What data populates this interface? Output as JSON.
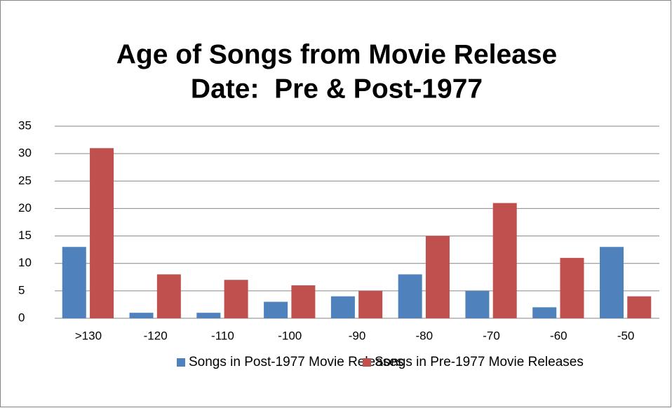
{
  "chart_data": {
    "type": "bar",
    "title": [
      "Age of Songs from Movie Release",
      "Date:  Pre & Post-1977"
    ],
    "categories": [
      ">130",
      "-120",
      "-110",
      "-100",
      "-90",
      "-80",
      "-70",
      "-60",
      "-50"
    ],
    "series": [
      {
        "name": "Songs in Post-1977 Movie Releases",
        "color": "#4f81bd",
        "values": [
          13,
          1,
          1,
          3,
          4,
          8,
          5,
          2,
          13
        ]
      },
      {
        "name": "Songs in Pre-1977 Movie Releases",
        "color": "#c0504d",
        "values": [
          31,
          8,
          7,
          6,
          5,
          15,
          21,
          11,
          4
        ]
      }
    ],
    "ylim": [
      0,
      35
    ],
    "yticks": [
      0,
      5,
      10,
      15,
      20,
      25,
      30,
      35
    ],
    "grid": true,
    "legend": "bottom"
  }
}
